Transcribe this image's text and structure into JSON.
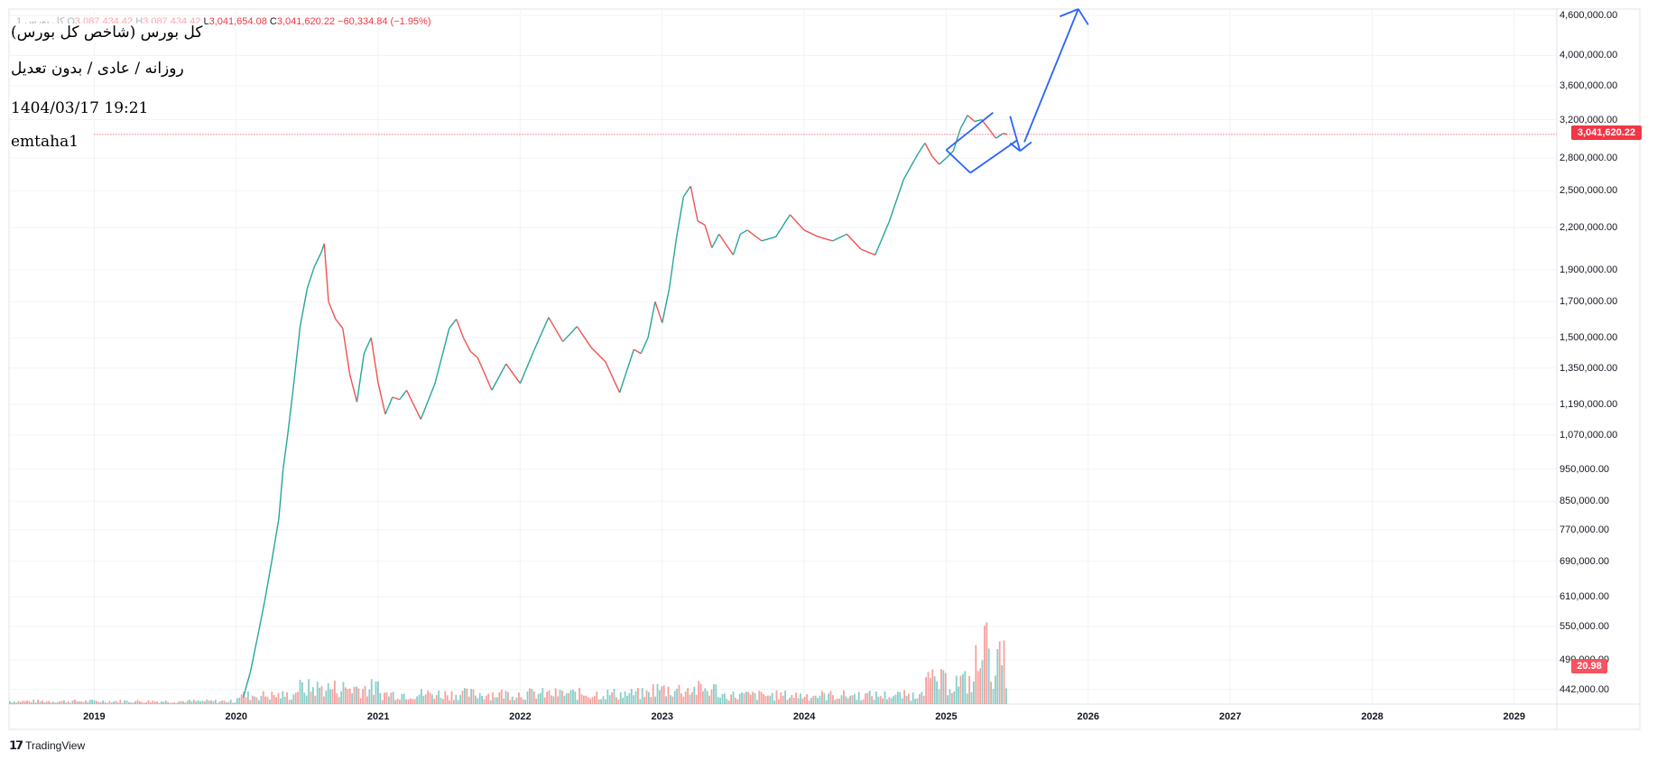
{
  "legend": {
    "symbol": "کل بورس 1",
    "o_label": "O",
    "o_value": "3,087,434.42",
    "h_label": "H",
    "h_value": "3,087,434.42",
    "l_label": "L",
    "l_value": "3,041,654.08",
    "c_label": "C",
    "c_value": "3,041,620.22",
    "change": "−60,334.84 (−1.95%)"
  },
  "annotations": {
    "title": "کل بورس (شاخص کل بورس)",
    "interval": "روزانه / عادی / بدون تعدیل",
    "datetime": "1404/03/17 19:21",
    "author": "emtaha1"
  },
  "price_badge": "3,041,620.22",
  "volume_badge": "20.98",
  "branding": "TradingView",
  "colors": {
    "up": "#26a69a",
    "down": "#ef5350",
    "drawing": "#2962ff",
    "last_price": "#f23645"
  },
  "chart_data": {
    "type": "line",
    "y_scale": "log",
    "ylim": [
      420000,
      4700000
    ],
    "xlim": [
      2018.4,
      2029.3
    ],
    "last_price": 3041620.22,
    "x_ticks": [
      "2019",
      "2020",
      "2021",
      "2022",
      "2023",
      "2024",
      "2025",
      "2026",
      "2027",
      "2028",
      "2029"
    ],
    "x_tick_values": [
      2019,
      2020,
      2021,
      2022,
      2023,
      2024,
      2025,
      2026,
      2027,
      2028,
      2029
    ],
    "y_ticks": [
      "4,600,000.00",
      "4,000,000.00",
      "3,600,000.00",
      "3,200,000.00",
      "2,800,000.00",
      "2,500,000.00",
      "2,200,000.00",
      "1,900,000.00",
      "1,700,000.00",
      "1,500,000.00",
      "1,350,000.00",
      "1,190,000.00",
      "1,070,000.00",
      "950,000.00",
      "850,000.00",
      "770,000.00",
      "690,000.00",
      "610,000.00",
      "550,000.00",
      "490,000.00",
      "442,000.00"
    ],
    "y_tick_values": [
      4600000,
      4000000,
      3600000,
      3200000,
      2800000,
      2500000,
      2200000,
      1900000,
      1700000,
      1500000,
      1350000,
      1190000,
      1070000,
      950000,
      850000,
      770000,
      690000,
      610000,
      550000,
      490000,
      442000
    ],
    "series": [
      {
        "x": [
          2020.05,
          2020.1,
          2020.15,
          2020.2,
          2020.25,
          2020.3,
          2020.33,
          2020.36,
          2020.4,
          2020.45,
          2020.5,
          2020.55,
          2020.6,
          2020.62,
          2020.65,
          2020.7,
          2020.75,
          2020.8,
          2020.85,
          2020.9,
          2020.95,
          2021.0,
          2021.05,
          2021.1,
          2021.15,
          2021.2,
          2021.3,
          2021.4,
          2021.5,
          2021.55,
          2021.6,
          2021.65,
          2021.7,
          2021.8,
          2021.9,
          2022.0,
          2022.1,
          2022.2,
          2022.3,
          2022.4,
          2022.5,
          2022.6,
          2022.7,
          2022.8,
          2022.85,
          2022.9,
          2022.95,
          2023.0,
          2023.05,
          2023.1,
          2023.15,
          2023.2,
          2023.25,
          2023.3,
          2023.35,
          2023.4,
          2023.5,
          2023.55,
          2023.6,
          2023.7,
          2023.8,
          2023.9,
          2024.0,
          2024.1,
          2024.2,
          2024.3,
          2024.4,
          2024.5,
          2024.6,
          2024.7,
          2024.8,
          2024.85,
          2024.9,
          2024.95,
          2025.0,
          2025.05,
          2025.1,
          2025.15,
          2025.2,
          2025.25,
          2025.3,
          2025.35,
          2025.4,
          2025.43
        ],
        "y": [
          430000,
          470000,
          530000,
          600000,
          690000,
          800000,
          950000,
          1060000,
          1250000,
          1560000,
          1780000,
          1920000,
          2020000,
          2080000,
          1700000,
          1600000,
          1550000,
          1320000,
          1200000,
          1420000,
          1500000,
          1280000,
          1150000,
          1220000,
          1210000,
          1250000,
          1130000,
          1280000,
          1550000,
          1600000,
          1500000,
          1430000,
          1400000,
          1250000,
          1370000,
          1280000,
          1440000,
          1610000,
          1480000,
          1560000,
          1450000,
          1380000,
          1240000,
          1440000,
          1420000,
          1500000,
          1700000,
          1580000,
          1780000,
          2120000,
          2450000,
          2540000,
          2250000,
          2220000,
          2050000,
          2150000,
          2000000,
          2150000,
          2180000,
          2100000,
          2130000,
          2300000,
          2180000,
          2130000,
          2100000,
          2150000,
          2040000,
          2000000,
          2250000,
          2600000,
          2840000,
          2950000,
          2820000,
          2740000,
          2800000,
          2870000,
          3100000,
          3250000,
          3180000,
          3200000,
          3100000,
          3000000,
          3050000,
          3041620
        ]
      }
    ]
  }
}
